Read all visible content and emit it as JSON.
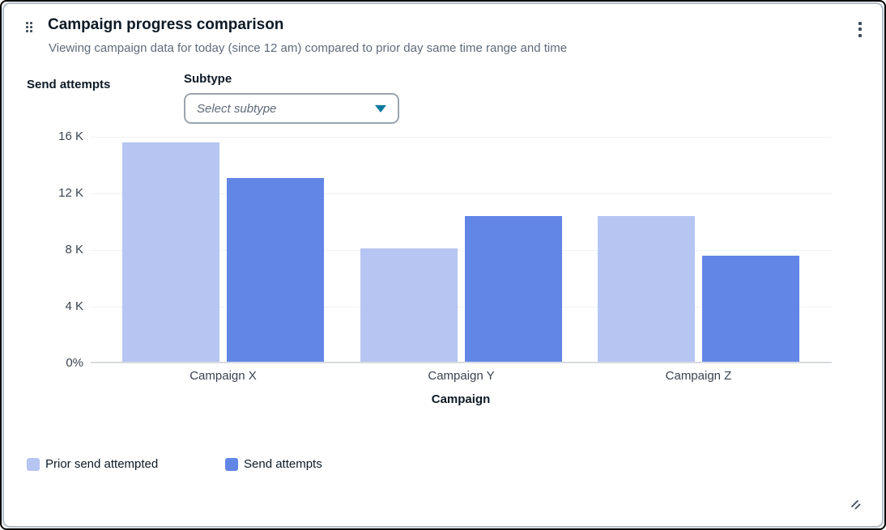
{
  "widget": {
    "title": "Campaign progress comparison",
    "subtitle": "Viewing campaign data for today (since 12 am) compared to prior day same time range and time",
    "icons": {
      "drag_handle": "drag-handle-dots",
      "menu": "kebab-vertical-dots",
      "resize": "diagonal-resize-lines"
    }
  },
  "controls": {
    "subtype_label": "Subtype",
    "subtype_placeholder": "Select subtype",
    "dropdown_caret_color": "#0b7a9e"
  },
  "chart_data": {
    "type": "bar",
    "title": "Campaign progress comparison",
    "categories": [
      "Campaign X",
      "Campaign Y",
      "Campaign Z"
    ],
    "series": [
      {
        "name": "Prior send attempted",
        "color": "#b6c5f2",
        "values": [
          15500,
          8000,
          10300
        ]
      },
      {
        "name": "Send attempts",
        "color": "#6286e6",
        "values": [
          13000,
          10300,
          7500
        ]
      }
    ],
    "xlabel": "Campaign",
    "ylabel": "Send attempts",
    "y_ticks": [
      "16 K",
      "12 K",
      "8 K",
      "4 K",
      "0%"
    ],
    "ylim": [
      0,
      16000
    ],
    "grid": true,
    "legend_position": "bottom-left"
  }
}
